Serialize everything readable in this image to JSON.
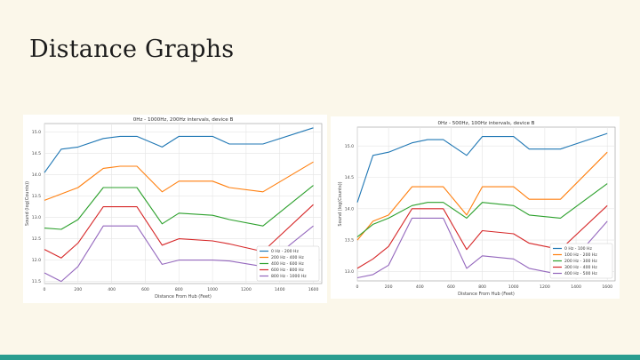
{
  "slide": {
    "title": "Distance Graphs",
    "accent_bar_color": "#2a9d8f",
    "background": "#fbf7ea"
  },
  "chart_data": [
    {
      "type": "line",
      "title": "0Hz - 1000Hz, 200Hz intervals, device B",
      "xlabel": "Distance From Hub (Feet)",
      "ylabel": "Sound (log(Counts))",
      "x": [
        0,
        100,
        200,
        300,
        400,
        500,
        600,
        700,
        800,
        900,
        1000,
        1100,
        1200,
        1300,
        1400,
        1500,
        1600
      ],
      "x_ticks": [
        "0",
        "200",
        "400",
        "600",
        "800",
        "1000",
        "1200",
        "1400",
        "1600"
      ],
      "x_tick_values": [
        0,
        200,
        400,
        600,
        800,
        1000,
        1200,
        1400,
        1600
      ],
      "y_ticks": [
        "11.5",
        "12.0",
        "12.5",
        "13.0",
        "13.5",
        "14.0",
        "14.5",
        "15.0"
      ],
      "y_tick_values": [
        11.5,
        12.0,
        12.5,
        13.0,
        13.5,
        14.0,
        14.5,
        15.0
      ],
      "xlim": [
        0,
        1650
      ],
      "ylim": [
        11.45,
        15.2
      ],
      "grid": true,
      "legend": "bottom-right",
      "series": [
        {
          "name": "0 Hz - 200 Hz",
          "color": "#1f77b4",
          "x": [
            0,
            100,
            200,
            350,
            450,
            550,
            700,
            800,
            1000,
            1100,
            1300,
            1600
          ],
          "values": [
            14.05,
            14.6,
            14.65,
            14.85,
            14.9,
            14.9,
            14.65,
            14.9,
            14.9,
            14.72,
            14.72,
            15.1
          ]
        },
        {
          "name": "200 Hz - 400 Hz",
          "color": "#ff7f0e",
          "x": [
            0,
            200,
            350,
            450,
            550,
            700,
            800,
            1000,
            1100,
            1300,
            1600
          ],
          "values": [
            13.4,
            13.7,
            14.15,
            14.2,
            14.2,
            13.6,
            13.85,
            13.85,
            13.7,
            13.6,
            14.3
          ]
        },
        {
          "name": "400 Hz - 600 Hz",
          "color": "#2ca02c",
          "x": [
            0,
            100,
            200,
            350,
            450,
            550,
            700,
            800,
            1000,
            1100,
            1300,
            1600
          ],
          "values": [
            12.75,
            12.72,
            12.95,
            13.7,
            13.7,
            13.7,
            12.85,
            13.1,
            13.05,
            12.95,
            12.8,
            13.75
          ]
        },
        {
          "name": "600 Hz - 800 Hz",
          "color": "#d62728",
          "x": [
            0,
            100,
            200,
            350,
            450,
            550,
            700,
            800,
            1000,
            1100,
            1300,
            1600
          ],
          "values": [
            12.25,
            12.05,
            12.4,
            13.25,
            13.25,
            13.25,
            12.35,
            12.5,
            12.45,
            12.38,
            12.2,
            13.3
          ]
        },
        {
          "name": "800 Hz - 1000 Hz",
          "color": "#9467bd",
          "x": [
            0,
            100,
            200,
            350,
            450,
            550,
            700,
            800,
            1000,
            1100,
            1300,
            1600
          ],
          "values": [
            11.7,
            11.5,
            11.85,
            12.8,
            12.8,
            12.8,
            11.9,
            12.0,
            12.0,
            11.98,
            11.85,
            12.8
          ]
        }
      ]
    },
    {
      "type": "line",
      "title": "0Hz - 500Hz, 100Hz intervals, device B",
      "xlabel": "Distance From Hub (Feet)",
      "ylabel": "Sound (log(Counts))",
      "x": [
        0,
        100,
        200,
        300,
        400,
        500,
        600,
        700,
        800,
        900,
        1000,
        1100,
        1200,
        1300,
        1400,
        1500,
        1600
      ],
      "x_ticks": [
        "0",
        "200",
        "400",
        "600",
        "800",
        "1000",
        "1200",
        "1400",
        "1600"
      ],
      "x_tick_values": [
        0,
        200,
        400,
        600,
        800,
        1000,
        1200,
        1400,
        1600
      ],
      "y_ticks": [
        "13.0",
        "13.5",
        "14.0",
        "14.5",
        "15.0"
      ],
      "y_tick_values": [
        13.0,
        13.5,
        14.0,
        14.5,
        15.0
      ],
      "xlim": [
        0,
        1650
      ],
      "ylim": [
        12.85,
        15.3
      ],
      "grid": true,
      "legend": "bottom-right",
      "series": [
        {
          "name": "0 Hz - 100 Hz",
          "color": "#1f77b4",
          "x": [
            0,
            100,
            200,
            350,
            450,
            550,
            700,
            800,
            1000,
            1100,
            1300,
            1600
          ],
          "values": [
            14.1,
            14.85,
            14.9,
            15.05,
            15.1,
            15.1,
            14.85,
            15.15,
            15.15,
            14.95,
            14.95,
            15.2
          ]
        },
        {
          "name": "100 Hz - 200 Hz",
          "color": "#ff7f0e",
          "x": [
            0,
            100,
            200,
            350,
            450,
            550,
            700,
            800,
            1000,
            1100,
            1300,
            1600
          ],
          "values": [
            13.5,
            13.8,
            13.9,
            14.35,
            14.35,
            14.35,
            13.9,
            14.35,
            14.35,
            14.15,
            14.15,
            14.9
          ]
        },
        {
          "name": "200 Hz - 300 Hz",
          "color": "#2ca02c",
          "x": [
            0,
            100,
            200,
            350,
            450,
            550,
            700,
            800,
            1000,
            1100,
            1300,
            1600
          ],
          "values": [
            13.55,
            13.75,
            13.85,
            14.05,
            14.1,
            14.1,
            13.85,
            14.1,
            14.05,
            13.9,
            13.85,
            14.4
          ]
        },
        {
          "name": "300 Hz - 400 Hz",
          "color": "#d62728",
          "x": [
            0,
            100,
            200,
            350,
            450,
            550,
            700,
            800,
            1000,
            1100,
            1300,
            1600
          ],
          "values": [
            13.05,
            13.2,
            13.4,
            14.0,
            14.0,
            14.0,
            13.35,
            13.65,
            13.6,
            13.45,
            13.35,
            14.05
          ]
        },
        {
          "name": "400 Hz - 500 Hz",
          "color": "#9467bd",
          "x": [
            0,
            100,
            200,
            350,
            450,
            550,
            700,
            800,
            1000,
            1100,
            1300,
            1600
          ],
          "values": [
            12.9,
            12.95,
            13.1,
            13.85,
            13.85,
            13.85,
            13.05,
            13.25,
            13.2,
            13.05,
            12.95,
            13.8
          ]
        }
      ]
    }
  ]
}
